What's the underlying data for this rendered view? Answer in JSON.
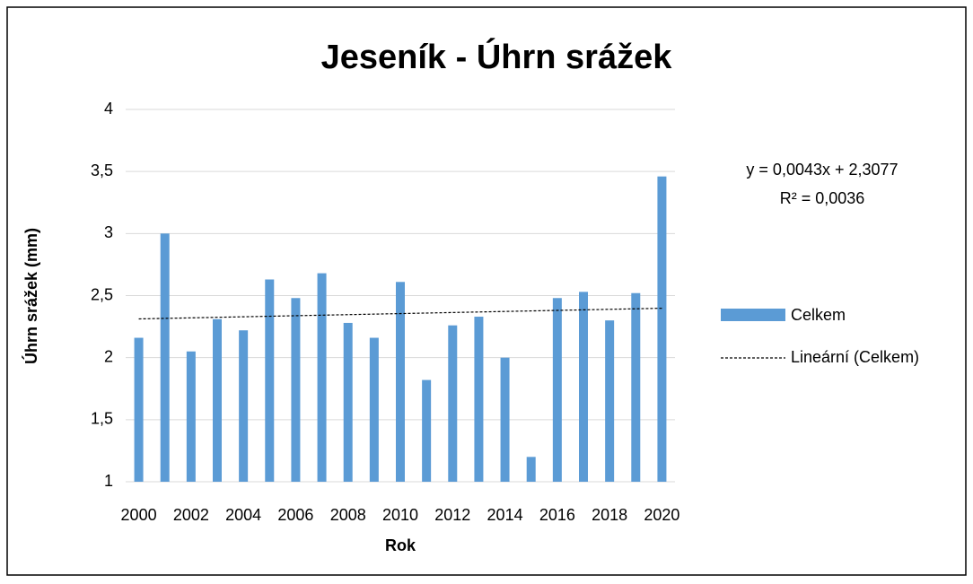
{
  "chart_data": {
    "type": "bar",
    "title": "Jeseník - Úhrn srážek",
    "y_label": "Úhrn srážek (mm)",
    "x_label": "Rok",
    "categories": [
      2000,
      null,
      2002,
      null,
      2004,
      null,
      2006,
      null,
      2008,
      null,
      2010,
      null,
      2012,
      null,
      2014,
      null,
      2016,
      null,
      2018,
      null,
      2020
    ],
    "series": [
      {
        "name": "Celkem",
        "color": "#5b9bd5",
        "values": [
          2.16,
          3.0,
          2.05,
          2.31,
          2.22,
          2.63,
          2.48,
          2.68,
          2.28,
          2.16,
          2.61,
          1.82,
          2.26,
          2.33,
          2.0,
          1.2,
          2.48,
          2.53,
          2.3,
          2.52,
          3.46
        ]
      }
    ],
    "trendline": {
      "name": "Lineární (Celkem)",
      "slope": 0.0043,
      "intercept": 2.3077,
      "equation": "y = 0,0043x + 2,3077",
      "r2": "R² = 0,0036",
      "color": "#000000"
    },
    "ylim": [
      1,
      4
    ],
    "yticks": [
      1,
      {
        "value": 1.5,
        "label": "1,5"
      },
      2,
      {
        "value": 2.5,
        "label": "2,5"
      },
      3,
      {
        "value": 3.5,
        "label": "3,5"
      },
      4
    ],
    "grid": true,
    "legend": "right"
  }
}
